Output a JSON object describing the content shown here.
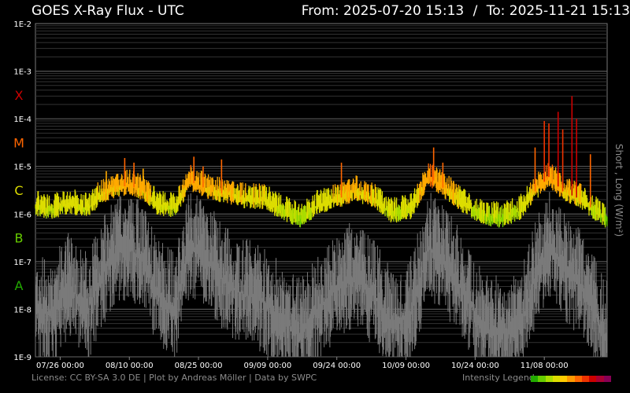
{
  "title": "GOES X-Ray Flux - UTC",
  "range": {
    "from_label": "From:",
    "from": "2025-07-20 15:13",
    "sep": "/",
    "to_label": "To:",
    "to": "2025-11-21 15:13"
  },
  "footer": {
    "license": "License: CC BY-SA 3.0 DE | Plot by Andreas Möller | Data by SWPC",
    "legend_label": "Intensity Legend"
  },
  "legend_colors": [
    "#22aa00",
    "#66cc00",
    "#aadd00",
    "#dddd00",
    "#ffcc00",
    "#ff9900",
    "#ff6600",
    "#ee3300",
    "#cc0000",
    "#aa0033",
    "#880055"
  ],
  "chart_data": {
    "type": "line",
    "title": "GOES X-Ray Flux - UTC",
    "ylabel": "Short , Long (W/m²)",
    "yscale": "log",
    "ylim": [
      1e-09,
      0.01
    ],
    "y_ticks": [
      "1E-9",
      "1E-8",
      "1E-7",
      "1E-6",
      "1E-5",
      "1E-4",
      "1E-3",
      "1E-2"
    ],
    "flare_classes": [
      {
        "label": "X",
        "color": "#cc0000"
      },
      {
        "label": "M",
        "color": "#ff6600"
      },
      {
        "label": "C",
        "color": "#dddd00"
      },
      {
        "label": "B",
        "color": "#66cc00"
      },
      {
        "label": "A",
        "color": "#22aa00"
      }
    ],
    "x_range": [
      "2025-07-20 15:13",
      "2025-11-21 15:13"
    ],
    "x_ticks": [
      "07/26 00:00",
      "08/10 00:00",
      "08/25 00:00",
      "09/09 00:00",
      "09/24 00:00",
      "10/09 00:00",
      "10/24 00:00",
      "11/08 00:00"
    ],
    "grid": true,
    "series": [
      {
        "name": "Long",
        "x": [
          "2025-07-20",
          "2025-07-24",
          "2025-07-28",
          "2025-08-01",
          "2025-08-04",
          "2025-08-07",
          "2025-08-10",
          "2025-08-13",
          "2025-08-16",
          "2025-08-20",
          "2025-08-23",
          "2025-08-25",
          "2025-08-28",
          "2025-09-01",
          "2025-09-04",
          "2025-09-08",
          "2025-09-12",
          "2025-09-16",
          "2025-09-20",
          "2025-09-24",
          "2025-09-28",
          "2025-10-02",
          "2025-10-06",
          "2025-10-10",
          "2025-10-14",
          "2025-10-18",
          "2025-10-22",
          "2025-10-26",
          "2025-10-30",
          "2025-11-03",
          "2025-11-06",
          "2025-11-09",
          "2025-11-12",
          "2025-11-16",
          "2025-11-21"
        ],
        "y": [
          1.5e-06,
          1.2e-06,
          1.6e-06,
          1.3e-06,
          2.5e-06,
          3.5e-06,
          4e-06,
          3e-06,
          1.5e-06,
          1.3e-06,
          5e-06,
          4e-06,
          3e-06,
          2.5e-06,
          2e-06,
          2e-06,
          1.2e-06,
          8e-07,
          1.5e-06,
          2e-06,
          3e-06,
          2e-06,
          1e-06,
          1.2e-06,
          6e-06,
          3e-06,
          1.5e-06,
          9e-07,
          8e-07,
          1.2e-06,
          3e-06,
          6e-06,
          3e-06,
          2e-06,
          8e-07
        ]
      },
      {
        "name": "Short",
        "x": [
          "2025-07-20",
          "2025-07-24",
          "2025-07-28",
          "2025-08-01",
          "2025-08-04",
          "2025-08-07",
          "2025-08-10",
          "2025-08-13",
          "2025-08-16",
          "2025-08-20",
          "2025-08-23",
          "2025-08-25",
          "2025-08-28",
          "2025-09-01",
          "2025-09-04",
          "2025-09-08",
          "2025-09-12",
          "2025-09-16",
          "2025-09-20",
          "2025-09-24",
          "2025-09-28",
          "2025-10-02",
          "2025-10-06",
          "2025-10-10",
          "2025-10-14",
          "2025-10-18",
          "2025-10-22",
          "2025-10-26",
          "2025-10-30",
          "2025-11-03",
          "2025-11-06",
          "2025-11-09",
          "2025-11-12",
          "2025-11-16",
          "2025-11-21"
        ],
        "y": [
          1e-08,
          8e-09,
          3e-08,
          1e-08,
          5e-08,
          1.5e-07,
          2e-07,
          1e-07,
          2e-08,
          1e-08,
          2e-07,
          1.5e-07,
          8e-08,
          3e-08,
          2e-08,
          1.5e-08,
          6e-09,
          3e-09,
          1e-08,
          3e-08,
          5e-08,
          2e-08,
          5e-09,
          8e-09,
          2e-07,
          8e-08,
          2e-08,
          4e-09,
          3e-09,
          5e-09,
          5e-08,
          2e-07,
          8e-08,
          3e-08,
          3e-09
        ]
      }
    ],
    "flare_peaks": [
      {
        "x": "2025-08-05",
        "y": 8e-06
      },
      {
        "x": "2025-08-09",
        "y": 1.5e-05
      },
      {
        "x": "2025-08-11",
        "y": 1.2e-05
      },
      {
        "x": "2025-08-13",
        "y": 9e-06
      },
      {
        "x": "2025-08-24",
        "y": 1.6e-05
      },
      {
        "x": "2025-08-26",
        "y": 1e-05
      },
      {
        "x": "2025-08-30",
        "y": 1.4e-05
      },
      {
        "x": "2025-09-25",
        "y": 1.2e-05
      },
      {
        "x": "2025-10-15",
        "y": 2.5e-05
      },
      {
        "x": "2025-10-17",
        "y": 1.2e-05
      },
      {
        "x": "2025-11-06",
        "y": 2.5e-05
      },
      {
        "x": "2025-11-08",
        "y": 9e-05
      },
      {
        "x": "2025-11-09",
        "y": 8e-05
      },
      {
        "x": "2025-11-11",
        "y": 0.00014
      },
      {
        "x": "2025-11-12",
        "y": 6e-05
      },
      {
        "x": "2025-11-14",
        "y": 0.0003
      },
      {
        "x": "2025-11-15",
        "y": 0.0001
      },
      {
        "x": "2025-11-18",
        "y": 1.8e-05
      }
    ]
  }
}
